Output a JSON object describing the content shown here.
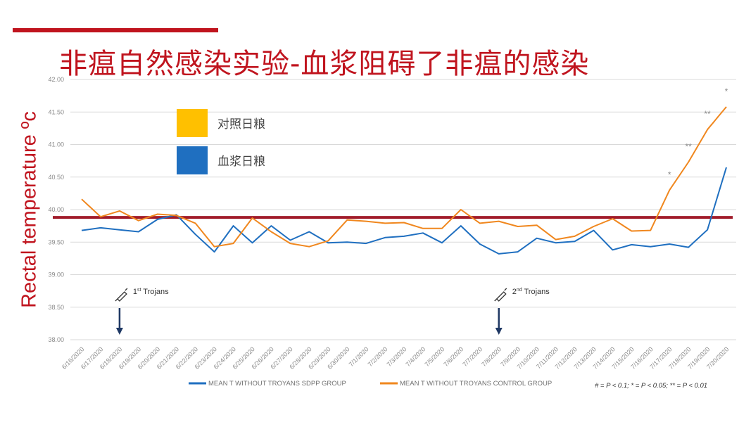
{
  "slide": {
    "title": "非瘟自然感染实验-血浆阻碍了非瘟的感染",
    "accent_color": "#c0141e"
  },
  "chart_data": {
    "type": "line",
    "ylabel": "Rectal temperature ºc",
    "ylim": [
      38.0,
      42.0
    ],
    "yticks": [
      "38.00",
      "38.50",
      "39.00",
      "39.50",
      "40.00",
      "40.50",
      "41.00",
      "41.50",
      "42.00"
    ],
    "categories": [
      "6/16/2020",
      "6/17/2020",
      "6/18/2020",
      "6/19/2020",
      "6/20/2020",
      "6/21/2020",
      "6/22/2020",
      "6/23/2020",
      "6/24/2020",
      "6/25/2020",
      "6/26/2020",
      "6/27/2020",
      "6/28/2020",
      "6/29/2020",
      "6/30/2020",
      "7/1/2020",
      "7/2/2020",
      "7/3/2020",
      "7/4/2020",
      "7/5/2020",
      "7/6/2020",
      "7/7/2020",
      "7/8/2020",
      "7/9/2020",
      "7/10/2020",
      "7/11/2020",
      "7/12/2020",
      "7/13/2020",
      "7/14/2020",
      "7/15/2020",
      "7/16/2020",
      "7/17/2020",
      "7/18/2020",
      "7/19/2020",
      "7/20/2020"
    ],
    "series": [
      {
        "name": "MEAN T WITHOUT TROYANS SDPP GROUP",
        "color": "#1f6fc0",
        "values": [
          39.68,
          39.72,
          39.69,
          39.66,
          39.85,
          39.92,
          39.62,
          39.35,
          39.75,
          39.49,
          39.75,
          39.53,
          39.66,
          39.49,
          39.5,
          39.48,
          39.57,
          39.59,
          39.64,
          39.49,
          39.75,
          39.47,
          39.32,
          39.35,
          39.56,
          39.49,
          39.51,
          39.68,
          39.38,
          39.46,
          39.43,
          39.47,
          39.42,
          39.69,
          40.65
        ]
      },
      {
        "name": "MEAN T WITHOUT TROYANS CONTROL GROUP",
        "color": "#f0871e",
        "values": [
          40.16,
          39.89,
          39.98,
          39.83,
          39.93,
          39.91,
          39.79,
          39.43,
          39.48,
          39.87,
          39.66,
          39.48,
          39.43,
          39.52,
          39.84,
          39.82,
          39.79,
          39.8,
          39.71,
          39.71,
          40.0,
          39.79,
          39.82,
          39.74,
          39.76,
          39.54,
          39.59,
          39.74,
          39.86,
          39.67,
          39.68,
          40.3,
          40.73,
          41.23,
          41.58
        ]
      }
    ],
    "threshold": {
      "value": 39.88,
      "color": "#a01b2a"
    },
    "legend_keys": [
      {
        "label": "对照日粮",
        "color": "#ffc000"
      },
      {
        "label": "血浆日粮",
        "color": "#1f6fc0"
      }
    ],
    "annotations": [
      {
        "category": "6/18/2020",
        "label_sup": "st",
        "label_main": "1",
        "label_rest": " Trojans"
      },
      {
        "category": "7/8/2020",
        "label_sup": "nd",
        "label_main": "2",
        "label_rest": " Trojans"
      }
    ],
    "significance": [
      {
        "category": "7/17/2020",
        "mark": "*"
      },
      {
        "category": "7/18/2020",
        "mark": "**"
      },
      {
        "category": "7/19/2020",
        "mark": "**"
      },
      {
        "category": "7/20/2020",
        "mark": "*"
      }
    ],
    "footnote": "# = P < 0.1; * = P < 0.05; ** = P < 0.01",
    "grid": true
  }
}
